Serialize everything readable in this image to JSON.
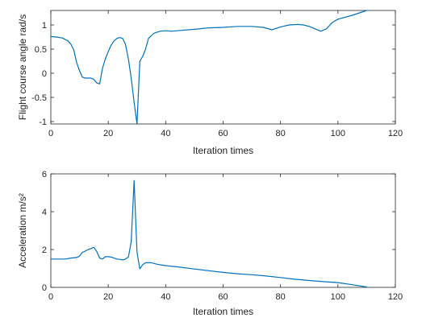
{
  "chart_data": [
    {
      "type": "line",
      "xlabel": "Iteration times",
      "ylabel": "Flight course angle rad/s",
      "xlim": [
        0,
        120
      ],
      "ylim": [
        -1.05,
        1.3
      ],
      "xticks": [
        0,
        20,
        40,
        60,
        80,
        100,
        120
      ],
      "yticks": [
        -1,
        -0.5,
        0,
        0.5,
        1
      ],
      "yticklabels": [
        "-1",
        "-0.5",
        "0",
        "0.5",
        "1"
      ],
      "color": "#0072BD",
      "series": [
        {
          "x": [
            0,
            2,
            4,
            6,
            7,
            8,
            9,
            10,
            11,
            12,
            13,
            14,
            15,
            16,
            17,
            18,
            19,
            20,
            21,
            22,
            23,
            24,
            25,
            26,
            27,
            28,
            29,
            30,
            31,
            32,
            33,
            34,
            35,
            36,
            38,
            40,
            42,
            44,
            50,
            55,
            60,
            65,
            70,
            74,
            77,
            80,
            83,
            86,
            88,
            90,
            92,
            94,
            96,
            98,
            100,
            105,
            110
          ],
          "y": [
            0.76,
            0.75,
            0.73,
            0.67,
            0.6,
            0.48,
            0.22,
            0.05,
            -0.08,
            -0.1,
            -0.1,
            -0.1,
            -0.13,
            -0.2,
            -0.22,
            0.1,
            0.3,
            0.45,
            0.58,
            0.67,
            0.72,
            0.74,
            0.72,
            0.6,
            0.3,
            -0.1,
            -0.6,
            -1.05,
            0.25,
            0.35,
            0.5,
            0.72,
            0.78,
            0.83,
            0.87,
            0.88,
            0.87,
            0.88,
            0.91,
            0.94,
            0.95,
            0.97,
            0.97,
            0.95,
            0.9,
            0.96,
            1.0,
            1.01,
            1.0,
            0.97,
            0.92,
            0.87,
            0.92,
            1.05,
            1.12,
            1.2,
            1.3
          ]
        }
      ]
    },
    {
      "type": "line",
      "xlabel": "Iteration times",
      "ylabel": "Acceleration m/s²",
      "xlim": [
        0,
        120
      ],
      "ylim": [
        0,
        6
      ],
      "xticks": [
        0,
        20,
        40,
        60,
        80,
        100,
        120
      ],
      "yticks": [
        0,
        2,
        4,
        6
      ],
      "yticklabels": [
        "0",
        "2",
        "4",
        "6"
      ],
      "color": "#0072BD",
      "series": [
        {
          "x": [
            0,
            3,
            5,
            7,
            9,
            10,
            11,
            12,
            13,
            14,
            15,
            16,
            17,
            18,
            19,
            20,
            21,
            22,
            23,
            24,
            25,
            26,
            27,
            28,
            29,
            30,
            31,
            32,
            33,
            35,
            37,
            40,
            45,
            50,
            55,
            60,
            65,
            70,
            75,
            80,
            85,
            90,
            95,
            100,
            105,
            110
          ],
          "y": [
            1.5,
            1.5,
            1.5,
            1.55,
            1.58,
            1.65,
            1.85,
            1.92,
            2.0,
            2.05,
            2.12,
            1.9,
            1.55,
            1.5,
            1.62,
            1.62,
            1.6,
            1.55,
            1.5,
            1.48,
            1.45,
            1.5,
            1.6,
            2.4,
            5.65,
            1.85,
            0.98,
            1.2,
            1.3,
            1.3,
            1.22,
            1.15,
            1.07,
            0.97,
            0.88,
            0.79,
            0.72,
            0.67,
            0.6,
            0.52,
            0.43,
            0.36,
            0.3,
            0.25,
            0.14,
            0.02
          ]
        }
      ]
    }
  ]
}
